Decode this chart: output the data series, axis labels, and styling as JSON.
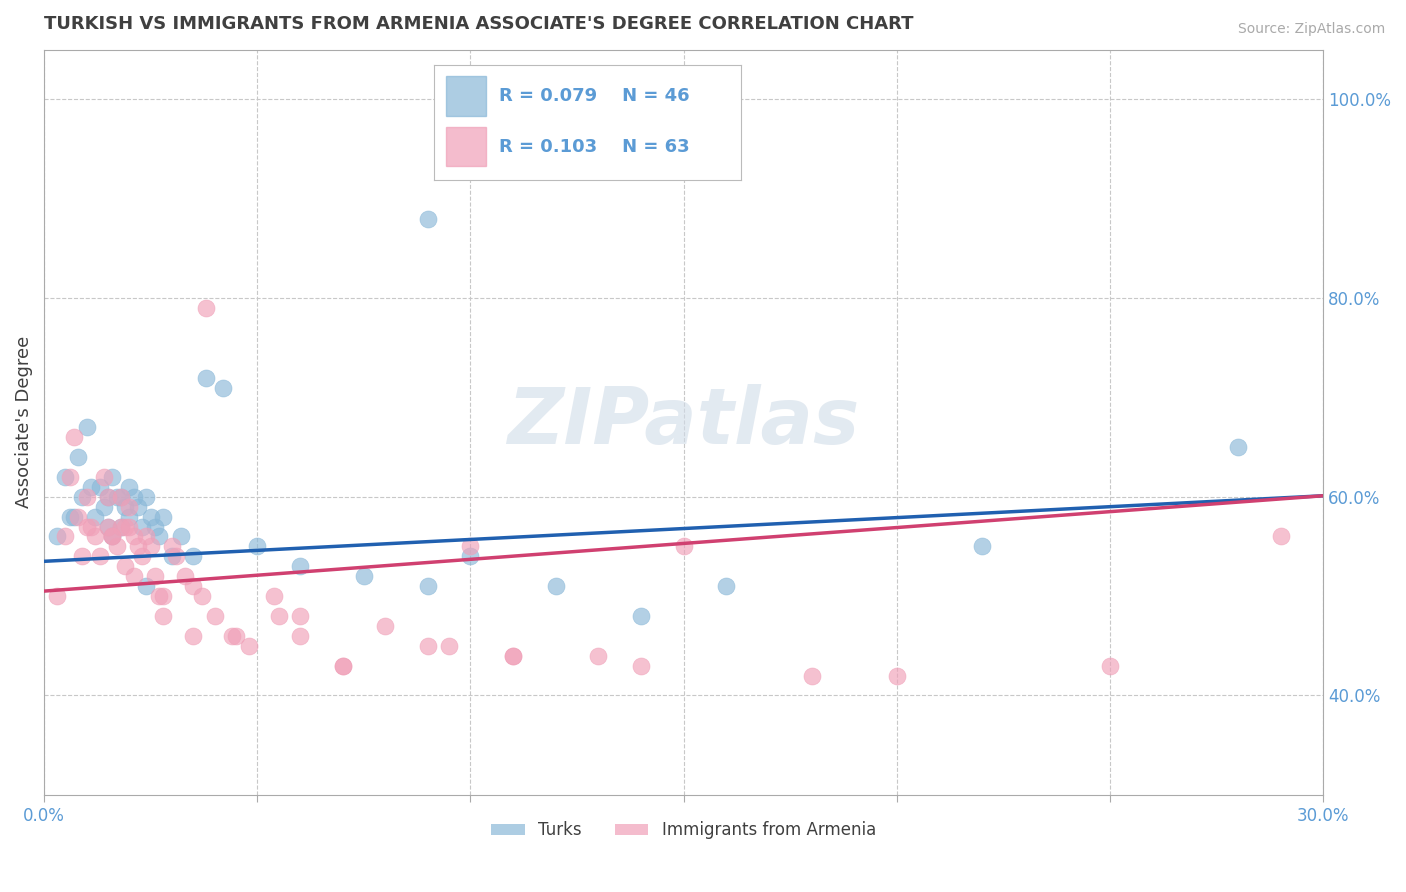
{
  "title": "TURKISH VS IMMIGRANTS FROM ARMENIA ASSOCIATE'S DEGREE CORRELATION CHART",
  "source_text": "Source: ZipAtlas.com",
  "ylabel": "Associate's Degree",
  "xlim": [
    0.0,
    0.3
  ],
  "ylim": [
    0.3,
    1.05
  ],
  "xticks": [
    0.0,
    0.05,
    0.1,
    0.15,
    0.2,
    0.25,
    0.3
  ],
  "xticklabels": [
    "0.0%",
    "",
    "",
    "",
    "",
    "",
    "30.0%"
  ],
  "yticks_right": [
    0.4,
    0.6,
    0.8,
    1.0
  ],
  "yticklabels_right": [
    "40.0%",
    "60.0%",
    "80.0%",
    "100.0%"
  ],
  "background_color": "#ffffff",
  "grid_color": "#c8c8c8",
  "watermark": "ZIPatlas",
  "watermark_color": "#d0dce8",
  "title_color": "#404040",
  "title_fontsize": 13,
  "blue_color": "#8ab8d8",
  "pink_color": "#f0a0b8",
  "blue_line_color": "#2060b0",
  "pink_line_color": "#d04070",
  "legend_R_blue": "R = 0.079",
  "legend_N_blue": "N = 46",
  "legend_R_pink": "R = 0.103",
  "legend_N_pink": "N = 63",
  "blue_intercept": 0.535,
  "blue_slope": 0.22,
  "pink_intercept": 0.505,
  "pink_slope": 0.32,
  "turks_x": [
    0.003,
    0.005,
    0.006,
    0.008,
    0.009,
    0.01,
    0.011,
    0.012,
    0.013,
    0.014,
    0.015,
    0.015,
    0.016,
    0.017,
    0.018,
    0.018,
    0.019,
    0.02,
    0.02,
    0.021,
    0.022,
    0.023,
    0.024,
    0.025,
    0.026,
    0.027,
    0.028,
    0.03,
    0.032,
    0.035,
    0.038,
    0.042,
    0.05,
    0.06,
    0.075,
    0.09,
    0.1,
    0.12,
    0.14,
    0.16,
    0.22,
    0.28,
    0.007,
    0.016,
    0.024,
    0.09
  ],
  "turks_y": [
    0.56,
    0.62,
    0.58,
    0.64,
    0.6,
    0.67,
    0.61,
    0.58,
    0.61,
    0.59,
    0.6,
    0.57,
    0.62,
    0.6,
    0.6,
    0.57,
    0.59,
    0.61,
    0.58,
    0.6,
    0.59,
    0.57,
    0.6,
    0.58,
    0.57,
    0.56,
    0.58,
    0.54,
    0.56,
    0.54,
    0.72,
    0.71,
    0.55,
    0.53,
    0.52,
    0.51,
    0.54,
    0.51,
    0.48,
    0.51,
    0.55,
    0.65,
    0.58,
    0.56,
    0.51,
    0.88
  ],
  "armenia_x": [
    0.003,
    0.005,
    0.006,
    0.007,
    0.008,
    0.009,
    0.01,
    0.011,
    0.012,
    0.013,
    0.014,
    0.015,
    0.015,
    0.016,
    0.017,
    0.018,
    0.018,
    0.019,
    0.019,
    0.02,
    0.02,
    0.021,
    0.022,
    0.023,
    0.024,
    0.025,
    0.026,
    0.027,
    0.028,
    0.03,
    0.031,
    0.033,
    0.035,
    0.037,
    0.04,
    0.044,
    0.048,
    0.054,
    0.06,
    0.07,
    0.08,
    0.095,
    0.11,
    0.14,
    0.18,
    0.2,
    0.25,
    0.06,
    0.1,
    0.15,
    0.01,
    0.016,
    0.021,
    0.028,
    0.035,
    0.045,
    0.055,
    0.07,
    0.09,
    0.11,
    0.13,
    0.29,
    0.038
  ],
  "armenia_y": [
    0.5,
    0.56,
    0.62,
    0.66,
    0.58,
    0.54,
    0.6,
    0.57,
    0.56,
    0.54,
    0.62,
    0.6,
    0.57,
    0.56,
    0.55,
    0.6,
    0.57,
    0.57,
    0.53,
    0.59,
    0.57,
    0.56,
    0.55,
    0.54,
    0.56,
    0.55,
    0.52,
    0.5,
    0.48,
    0.55,
    0.54,
    0.52,
    0.51,
    0.5,
    0.48,
    0.46,
    0.45,
    0.5,
    0.46,
    0.43,
    0.47,
    0.45,
    0.44,
    0.43,
    0.42,
    0.42,
    0.43,
    0.48,
    0.55,
    0.55,
    0.57,
    0.56,
    0.52,
    0.5,
    0.46,
    0.46,
    0.48,
    0.43,
    0.45,
    0.44,
    0.44,
    0.56,
    0.79
  ]
}
